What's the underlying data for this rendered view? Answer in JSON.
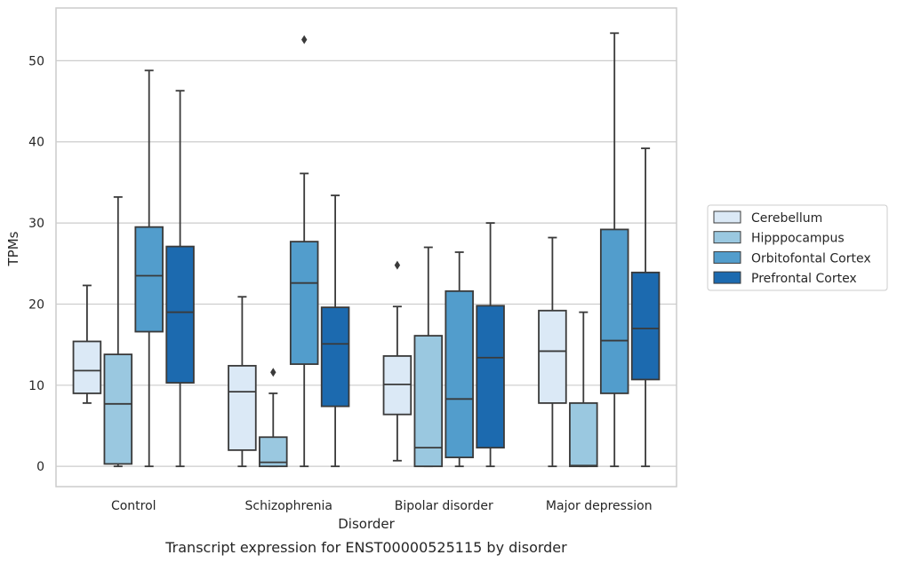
{
  "chart_data": {
    "type": "box",
    "title": "",
    "caption": "Transcript expression for ENST00000525115 by disorder",
    "xlabel": "Disorder",
    "ylabel": "TPMs",
    "ylim": [
      -2.5,
      56.5
    ],
    "yticks": [
      0,
      10,
      20,
      30,
      40,
      50
    ],
    "grid": "horizontal",
    "legend_position": "right",
    "categories": [
      "Control",
      "Schizophrenia",
      "Bipolar disorder",
      "Major depression"
    ],
    "series": [
      {
        "name": "Cerebellum",
        "color": "#dbe9f6",
        "boxes": [
          {
            "q1": 9.0,
            "median": 11.8,
            "q3": 15.4,
            "whisker_low": 7.8,
            "whisker_high": 22.3,
            "outliers": []
          },
          {
            "q1": 2.0,
            "median": 9.2,
            "q3": 12.4,
            "whisker_low": 0.0,
            "whisker_high": 20.9,
            "outliers": []
          },
          {
            "q1": 6.4,
            "median": 10.1,
            "q3": 13.6,
            "whisker_low": 0.7,
            "whisker_high": 19.7,
            "outliers": [
              24.8
            ]
          },
          {
            "q1": 7.8,
            "median": 14.2,
            "q3": 19.2,
            "whisker_low": 0.0,
            "whisker_high": 28.2,
            "outliers": []
          }
        ]
      },
      {
        "name": "Hipppocampus",
        "color": "#9ac8e0",
        "boxes": [
          {
            "q1": 0.3,
            "median": 7.7,
            "q3": 13.8,
            "whisker_low": 0.0,
            "whisker_high": 33.2,
            "outliers": []
          },
          {
            "q1": 0.0,
            "median": 0.5,
            "q3": 3.6,
            "whisker_low": 0.0,
            "whisker_high": 9.0,
            "outliers": [
              11.6
            ]
          },
          {
            "q1": 0.0,
            "median": 2.3,
            "q3": 16.1,
            "whisker_low": 0.0,
            "whisker_high": 27.0,
            "outliers": []
          },
          {
            "q1": 0.0,
            "median": 0.1,
            "q3": 7.8,
            "whisker_low": 0.0,
            "whisker_high": 19.0,
            "outliers": []
          }
        ]
      },
      {
        "name": "Orbitofontal Cortex",
        "color": "#529dcc",
        "boxes": [
          {
            "q1": 16.6,
            "median": 23.5,
            "q3": 29.5,
            "whisker_low": 0.0,
            "whisker_high": 48.8,
            "outliers": []
          },
          {
            "q1": 12.6,
            "median": 22.6,
            "q3": 27.7,
            "whisker_low": 0.0,
            "whisker_high": 36.1,
            "outliers": [
              52.6
            ]
          },
          {
            "q1": 1.1,
            "median": 8.3,
            "q3": 21.6,
            "whisker_low": 0.0,
            "whisker_high": 26.4,
            "outliers": []
          },
          {
            "q1": 9.0,
            "median": 15.5,
            "q3": 29.2,
            "whisker_low": 0.0,
            "whisker_high": 53.4,
            "outliers": []
          }
        ]
      },
      {
        "name": "Prefrontal Cortex",
        "color": "#1c6aaf",
        "boxes": [
          {
            "q1": 10.3,
            "median": 19.0,
            "q3": 27.1,
            "whisker_low": 0.0,
            "whisker_high": 46.3,
            "outliers": []
          },
          {
            "q1": 7.4,
            "median": 15.1,
            "q3": 19.6,
            "whisker_low": 0.0,
            "whisker_high": 33.4,
            "outliers": []
          },
          {
            "q1": 2.3,
            "median": 13.4,
            "q3": 19.8,
            "whisker_low": 0.0,
            "whisker_high": 30.0,
            "outliers": []
          },
          {
            "q1": 10.7,
            "median": 17.0,
            "q3": 23.9,
            "whisker_low": 0.0,
            "whisker_high": 39.2,
            "outliers": []
          }
        ]
      }
    ]
  }
}
